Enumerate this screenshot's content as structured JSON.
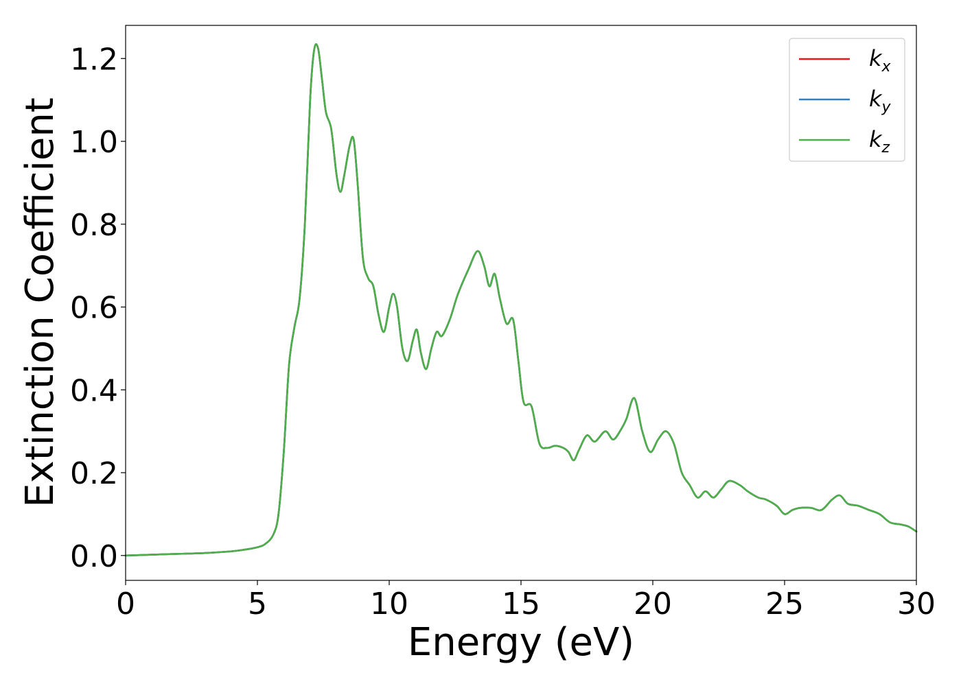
{
  "chart_data": {
    "type": "line",
    "title": "",
    "xlabel": "Energy (eV)",
    "ylabel": "Extinction Coefficient",
    "xlim": [
      0,
      30
    ],
    "ylim": [
      -0.06,
      1.28
    ],
    "xticks": [
      0,
      5,
      10,
      15,
      20,
      25,
      30
    ],
    "xtick_labels": [
      "0",
      "5",
      "10",
      "15",
      "20",
      "25",
      "30"
    ],
    "yticks": [
      0.0,
      0.2,
      0.4,
      0.6,
      0.8,
      1.0,
      1.2
    ],
    "ytick_labels": [
      "0.0",
      "0.2",
      "0.4",
      "0.6",
      "0.8",
      "1.0",
      "1.2"
    ],
    "grid": false,
    "legend_position": "top-right",
    "x": [
      0,
      1,
      2,
      3,
      4,
      4.5,
      5,
      5.3,
      5.6,
      5.8,
      6.0,
      6.2,
      6.4,
      6.6,
      6.8,
      7.0,
      7.15,
      7.3,
      7.45,
      7.6,
      7.8,
      8.0,
      8.15,
      8.3,
      8.5,
      8.65,
      8.8,
      9.0,
      9.2,
      9.4,
      9.6,
      9.8,
      10.0,
      10.15,
      10.3,
      10.5,
      10.7,
      10.9,
      11.05,
      11.2,
      11.4,
      11.6,
      11.8,
      12.0,
      12.3,
      12.6,
      13.0,
      13.35,
      13.6,
      13.8,
      14.0,
      14.2,
      14.45,
      14.7,
      14.9,
      15.1,
      15.4,
      15.7,
      16.0,
      16.3,
      16.6,
      16.8,
      17.0,
      17.2,
      17.5,
      17.8,
      18.2,
      18.5,
      18.8,
      19.0,
      19.3,
      19.6,
      19.9,
      20.2,
      20.5,
      20.8,
      21.1,
      21.4,
      21.7,
      22.0,
      22.3,
      22.6,
      22.9,
      23.3,
      23.6,
      24.0,
      24.3,
      24.7,
      25.0,
      25.3,
      25.6,
      26.0,
      26.4,
      26.8,
      27.1,
      27.4,
      27.8,
      28.2,
      28.6,
      29.0,
      29.4,
      29.7,
      30.0
    ],
    "series": [
      {
        "name": "k_x",
        "legend_main": "k",
        "legend_sub": "x",
        "color": "#e41a1c",
        "values": [
          0.0,
          0.002,
          0.004,
          0.006,
          0.01,
          0.014,
          0.02,
          0.028,
          0.05,
          0.1,
          0.25,
          0.46,
          0.55,
          0.62,
          0.8,
          1.1,
          1.22,
          1.225,
          1.15,
          1.07,
          1.03,
          0.92,
          0.878,
          0.92,
          0.99,
          1.005,
          0.9,
          0.72,
          0.67,
          0.65,
          0.58,
          0.54,
          0.6,
          0.632,
          0.6,
          0.5,
          0.47,
          0.52,
          0.545,
          0.49,
          0.45,
          0.5,
          0.54,
          0.53,
          0.57,
          0.63,
          0.69,
          0.735,
          0.7,
          0.65,
          0.68,
          0.62,
          0.56,
          0.57,
          0.47,
          0.37,
          0.36,
          0.27,
          0.26,
          0.265,
          0.26,
          0.25,
          0.23,
          0.255,
          0.29,
          0.275,
          0.3,
          0.28,
          0.305,
          0.33,
          0.38,
          0.3,
          0.25,
          0.28,
          0.3,
          0.27,
          0.2,
          0.17,
          0.14,
          0.155,
          0.14,
          0.16,
          0.18,
          0.17,
          0.155,
          0.14,
          0.135,
          0.12,
          0.1,
          0.11,
          0.115,
          0.115,
          0.11,
          0.135,
          0.145,
          0.125,
          0.12,
          0.11,
          0.1,
          0.08,
          0.075,
          0.07,
          0.058
        ]
      },
      {
        "name": "k_y",
        "legend_main": "k",
        "legend_sub": "y",
        "color": "#377eb8",
        "values": [
          0.0,
          0.002,
          0.004,
          0.006,
          0.01,
          0.014,
          0.02,
          0.028,
          0.05,
          0.1,
          0.25,
          0.46,
          0.55,
          0.62,
          0.8,
          1.1,
          1.22,
          1.225,
          1.15,
          1.07,
          1.03,
          0.92,
          0.878,
          0.92,
          0.99,
          1.005,
          0.9,
          0.72,
          0.67,
          0.65,
          0.58,
          0.54,
          0.6,
          0.632,
          0.6,
          0.5,
          0.47,
          0.52,
          0.545,
          0.49,
          0.45,
          0.5,
          0.54,
          0.53,
          0.57,
          0.63,
          0.69,
          0.735,
          0.7,
          0.65,
          0.68,
          0.62,
          0.56,
          0.57,
          0.47,
          0.37,
          0.36,
          0.27,
          0.26,
          0.265,
          0.26,
          0.25,
          0.23,
          0.255,
          0.29,
          0.275,
          0.3,
          0.28,
          0.305,
          0.33,
          0.38,
          0.3,
          0.25,
          0.28,
          0.3,
          0.27,
          0.2,
          0.17,
          0.14,
          0.155,
          0.14,
          0.16,
          0.18,
          0.17,
          0.155,
          0.14,
          0.135,
          0.12,
          0.1,
          0.11,
          0.115,
          0.115,
          0.11,
          0.135,
          0.145,
          0.125,
          0.12,
          0.11,
          0.1,
          0.08,
          0.075,
          0.07,
          0.058
        ]
      },
      {
        "name": "k_z",
        "legend_main": "k",
        "legend_sub": "z",
        "color": "#4daf4a",
        "values": [
          0.0,
          0.002,
          0.004,
          0.006,
          0.01,
          0.014,
          0.02,
          0.028,
          0.05,
          0.1,
          0.25,
          0.46,
          0.55,
          0.62,
          0.8,
          1.1,
          1.22,
          1.225,
          1.15,
          1.07,
          1.03,
          0.92,
          0.878,
          0.92,
          0.99,
          1.005,
          0.9,
          0.72,
          0.67,
          0.65,
          0.58,
          0.54,
          0.6,
          0.632,
          0.6,
          0.5,
          0.47,
          0.52,
          0.545,
          0.49,
          0.45,
          0.5,
          0.54,
          0.53,
          0.57,
          0.63,
          0.69,
          0.735,
          0.7,
          0.65,
          0.68,
          0.62,
          0.56,
          0.57,
          0.47,
          0.37,
          0.36,
          0.27,
          0.26,
          0.265,
          0.26,
          0.25,
          0.23,
          0.255,
          0.29,
          0.275,
          0.3,
          0.28,
          0.305,
          0.33,
          0.38,
          0.3,
          0.25,
          0.28,
          0.3,
          0.27,
          0.2,
          0.17,
          0.14,
          0.155,
          0.14,
          0.16,
          0.18,
          0.17,
          0.155,
          0.14,
          0.135,
          0.12,
          0.1,
          0.11,
          0.115,
          0.115,
          0.11,
          0.135,
          0.145,
          0.125,
          0.12,
          0.11,
          0.1,
          0.08,
          0.075,
          0.07,
          0.058
        ]
      }
    ]
  }
}
